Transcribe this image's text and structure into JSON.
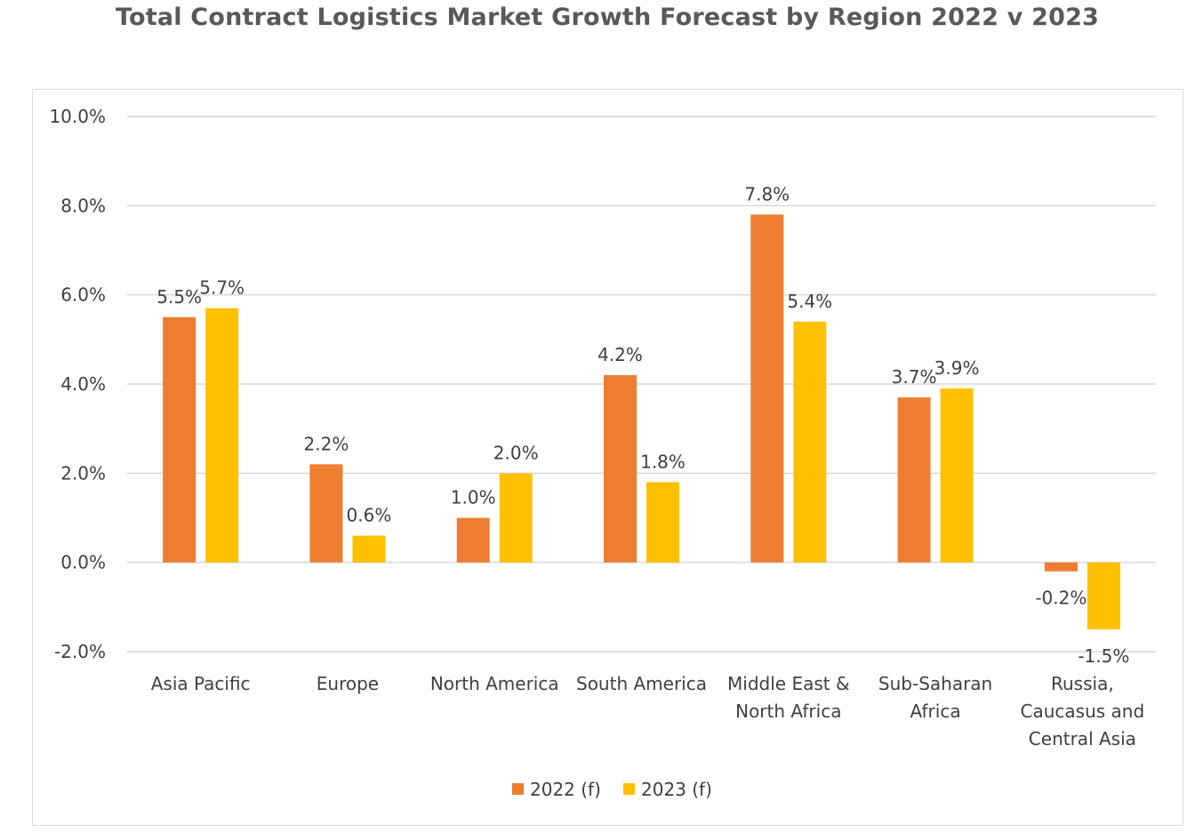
{
  "chart_data": {
    "type": "bar",
    "title": "Total Contract Logistics Market Growth Forecast by Region 2022 v 2023",
    "categories": [
      [
        "Asia Pacific"
      ],
      [
        "Europe"
      ],
      [
        "North America"
      ],
      [
        "South America"
      ],
      [
        "Middle East &",
        "North Africa"
      ],
      [
        "Sub-Saharan",
        "Africa"
      ],
      [
        "Russia,",
        "Caucasus and",
        "Central Asia"
      ]
    ],
    "series": [
      {
        "name": "2022 (f)",
        "color": "#ED7D31",
        "values": [
          5.5,
          2.2,
          1.0,
          4.2,
          7.8,
          3.7,
          -0.2
        ]
      },
      {
        "name": "2023 (f)",
        "color": "#FFC000",
        "values": [
          5.7,
          0.6,
          2.0,
          1.8,
          5.4,
          3.9,
          -1.5
        ]
      }
    ],
    "ylim": [
      -2,
      10
    ],
    "yticks": [
      "-2.0%",
      "0.0%",
      "2.0%",
      "4.0%",
      "6.0%",
      "8.0%",
      "10.0%"
    ],
    "grid": true,
    "legend": "bottom",
    "xlabel": "",
    "ylabel": ""
  }
}
